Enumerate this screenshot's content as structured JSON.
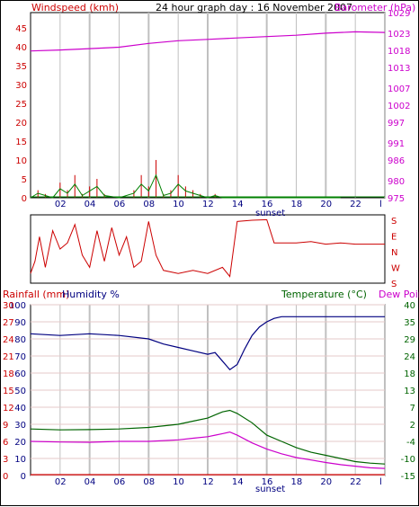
{
  "header": {
    "wind_label": "Windspeed (kmh)",
    "title": "24 hour graph day : 16 November 2007",
    "baro_label": "Barometer (hPa)"
  },
  "lower_header": {
    "rain_label": "Rainfall (mm)",
    "humidity_label": "Humidity %",
    "temp_label": "Temperature (°C)",
    "dew_label": "Dew Point"
  },
  "colors": {
    "wind": "#cc0000",
    "wind_gust": "#008000",
    "wind_avg": "#0000aa",
    "barometer": "#cc00cc",
    "direction": "#cc0000",
    "humidity": "#000080",
    "temperature": "#006400",
    "dewpoint": "#cc00cc",
    "rainfall": "#cc0000",
    "grid": "#c0c0c0"
  },
  "chart_data": [
    {
      "type": "line",
      "title": "24 hour graph day : 16 November 2007",
      "xlabel": "sunset",
      "x_ticks": [
        "02",
        "04",
        "06",
        "08",
        "10",
        "12",
        "14",
        "16",
        "18",
        "20",
        "22",
        "l"
      ],
      "left_axis": {
        "label": "Windspeed (kmh)",
        "ticks": [
          "0",
          "5",
          "10",
          "15",
          "20",
          "25",
          "30",
          "35",
          "40",
          "45"
        ],
        "range": [
          0,
          49
        ]
      },
      "right_axis": {
        "label": "Barometer (hPa)",
        "ticks": [
          "975",
          "980",
          "986",
          "991",
          "997",
          "1002",
          "1007",
          "1013",
          "1018",
          "1023",
          "1029"
        ],
        "range": [
          975,
          1029
        ]
      },
      "series": [
        {
          "name": "Barometer (hPa)",
          "axis": "right",
          "x": [
            0,
            2,
            4,
            6,
            8,
            10,
            12,
            14,
            16,
            18,
            20,
            22,
            24
          ],
          "values": [
            1017.8,
            1018.1,
            1018.5,
            1018.9,
            1020.0,
            1020.8,
            1021.2,
            1021.6,
            1022.0,
            1022.4,
            1023.0,
            1023.4,
            1023.2
          ]
        },
        {
          "name": "Windspeed (kmh)",
          "axis": "left",
          "x": [
            0,
            0.5,
            1,
            1.5,
            2,
            2.5,
            3,
            3.5,
            4,
            4.5,
            5,
            6,
            7,
            7.5,
            8,
            8.5,
            9,
            9.5,
            10,
            10.5,
            11,
            11.5,
            12,
            12.5,
            13,
            20.5,
            21
          ],
          "values": [
            0,
            2,
            1,
            0,
            4,
            2,
            6,
            1,
            3,
            5,
            1,
            0,
            2,
            6,
            3,
            10,
            1,
            2,
            6,
            3,
            2,
            1,
            0,
            1,
            0,
            0,
            0
          ]
        }
      ]
    },
    {
      "type": "line",
      "title": "",
      "right_axis": {
        "ticks": [
          "S",
          "E",
          "N",
          "W",
          "S"
        ]
      },
      "series": [
        {
          "name": "",
          "x": [
            0,
            0.3,
            0.6,
            1,
            1.5,
            2,
            2.5,
            3,
            3.5,
            4,
            4.5,
            5,
            5.5,
            6,
            6.5,
            7,
            7.5,
            8,
            8.5,
            9,
            10,
            11,
            12,
            13,
            13.5,
            14,
            15,
            16,
            16.5,
            17,
            18,
            19,
            20,
            21,
            22,
            23,
            24
          ],
          "values": [
            0.1,
            0.3,
            0.7,
            0.2,
            0.8,
            0.5,
            0.6,
            0.9,
            0.4,
            0.2,
            0.8,
            0.3,
            0.85,
            0.4,
            0.7,
            0.2,
            0.3,
            0.95,
            0.4,
            0.15,
            0.1,
            0.15,
            0.1,
            0.2,
            0.05,
            0.95,
            0.97,
            0.98,
            0.6,
            0.6,
            0.6,
            0.62,
            0.58,
            0.6,
            0.58,
            0.58,
            0.58
          ]
        }
      ]
    },
    {
      "type": "line",
      "title": "",
      "xlabel": "sunset",
      "x_ticks": [
        "02",
        "04",
        "06",
        "08",
        "10",
        "12",
        "14",
        "16",
        "18",
        "20",
        "22",
        "l"
      ],
      "humidity_axis": {
        "label": "Humidity %",
        "ticks": [
          "0",
          "10",
          "20",
          "30",
          "40",
          "50",
          "60",
          "70",
          "80",
          "90",
          "100"
        ],
        "range": [
          0,
          100
        ]
      },
      "rain_axis": {
        "label": "Rainfall (mm)",
        "ticks": [
          "0",
          "3",
          "6",
          "9",
          "12",
          "15",
          "18",
          "21",
          "24",
          "27",
          "30"
        ],
        "range": [
          0,
          30
        ]
      },
      "temp_axis": {
        "label": "Temperature (°C)",
        "ticks": [
          "-15",
          "-10",
          "-4",
          "2",
          "7",
          "13",
          "18",
          "24",
          "29",
          "35",
          "40"
        ],
        "range": [
          -15,
          40
        ]
      },
      "series": [
        {
          "name": "Humidity %",
          "axis": "humidity",
          "x": [
            0,
            2,
            4,
            6,
            8,
            9,
            10,
            11,
            12,
            12.5,
            13,
            13.5,
            14,
            14.5,
            15,
            15.5,
            16,
            16.5,
            17,
            18,
            20,
            22,
            24
          ],
          "values": [
            83,
            82,
            83,
            82,
            80,
            77,
            75,
            73,
            71,
            72,
            67,
            62,
            65,
            74,
            82,
            87,
            90,
            92,
            93,
            93,
            93,
            93,
            93
          ]
        },
        {
          "name": "Temperature (°C)",
          "axis": "temp",
          "x": [
            0,
            2,
            4,
            6,
            8,
            10,
            11,
            12,
            12.5,
            13,
            13.5,
            14,
            15,
            16,
            17,
            18,
            19,
            20,
            21,
            22,
            23,
            24
          ],
          "values": [
            0,
            -0.3,
            -0.2,
            0,
            0.5,
            1.5,
            2.5,
            3.5,
            4.5,
            5.5,
            6,
            5,
            2,
            -2,
            -4,
            -6,
            -7.5,
            -8.5,
            -9.5,
            -10.5,
            -11,
            -11.3
          ]
        },
        {
          "name": "Dew Point",
          "axis": "temp",
          "x": [
            0,
            2,
            4,
            6,
            8,
            10,
            11,
            12,
            12.5,
            13,
            13.5,
            14,
            15,
            16,
            17,
            18,
            19,
            20,
            21,
            22,
            23,
            24
          ],
          "values": [
            -4,
            -4.2,
            -4.3,
            -4,
            -4,
            -3.5,
            -3,
            -2.5,
            -2,
            -1.5,
            -1,
            -2,
            -4.5,
            -6.5,
            -8,
            -9.2,
            -10,
            -10.8,
            -11.5,
            -12,
            -12.5,
            -12.7
          ]
        },
        {
          "name": "Rainfall (mm)",
          "axis": "rain",
          "x": [
            0,
            24
          ],
          "values": [
            0,
            0
          ]
        }
      ]
    }
  ]
}
